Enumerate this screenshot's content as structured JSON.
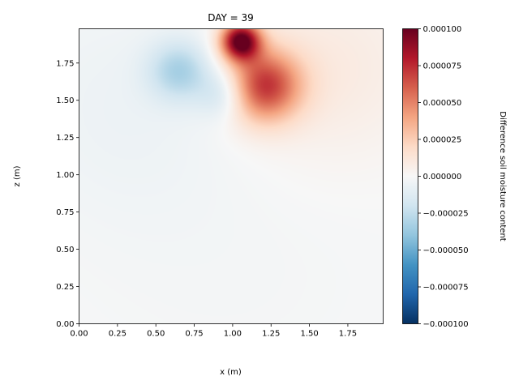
{
  "chart_data": {
    "type": "heatmap",
    "title": "DAY = 39",
    "xlabel": "x (m)",
    "ylabel": "z (m)",
    "xlim": [
      0.0,
      1.98
    ],
    "ylim": [
      0.0,
      1.98
    ],
    "x_ticks": [
      "0.00",
      "0.25",
      "0.50",
      "0.75",
      "1.00",
      "1.25",
      "1.50",
      "1.75"
    ],
    "x_tick_values": [
      0.0,
      0.25,
      0.5,
      0.75,
      1.0,
      1.25,
      1.5,
      1.75
    ],
    "y_ticks": [
      "0.00",
      "0.25",
      "0.50",
      "0.75",
      "1.00",
      "1.25",
      "1.50",
      "1.75"
    ],
    "y_tick_values": [
      0.0,
      0.25,
      0.5,
      0.75,
      1.0,
      1.25,
      1.5,
      1.75
    ],
    "colormap": "RdBu_r",
    "colorbar": {
      "label": "Difference soil moisture content",
      "vmin": -0.0001,
      "vmax": 0.0001,
      "ticks": [
        "0.000100",
        "0.000075",
        "0.000050",
        "0.000025",
        "0.000000",
        "−0.000025",
        "−0.000050",
        "−0.000075",
        "−0.000100"
      ],
      "tick_values": [
        0.0001,
        7.5e-05,
        5e-05,
        2.5e-05,
        0.0,
        -2.5e-05,
        -5e-05,
        -7.5e-05,
        -0.0001
      ]
    },
    "grid": false,
    "field_features": [
      {
        "x": 1.05,
        "z": 1.9,
        "value": 0.0001
      },
      {
        "x": 1.2,
        "z": 1.6,
        "value": 7e-05
      },
      {
        "x": 1.6,
        "z": 1.7,
        "value": 1e-05
      },
      {
        "x": 0.65,
        "z": 1.7,
        "value": -3e-05
      },
      {
        "x": 0.95,
        "z": 1.55,
        "value": -2.5e-05
      },
      {
        "x": 0.3,
        "z": 1.5,
        "value": -5e-06
      },
      {
        "x": 1.0,
        "z": 0.5,
        "value": -2e-06
      }
    ]
  }
}
